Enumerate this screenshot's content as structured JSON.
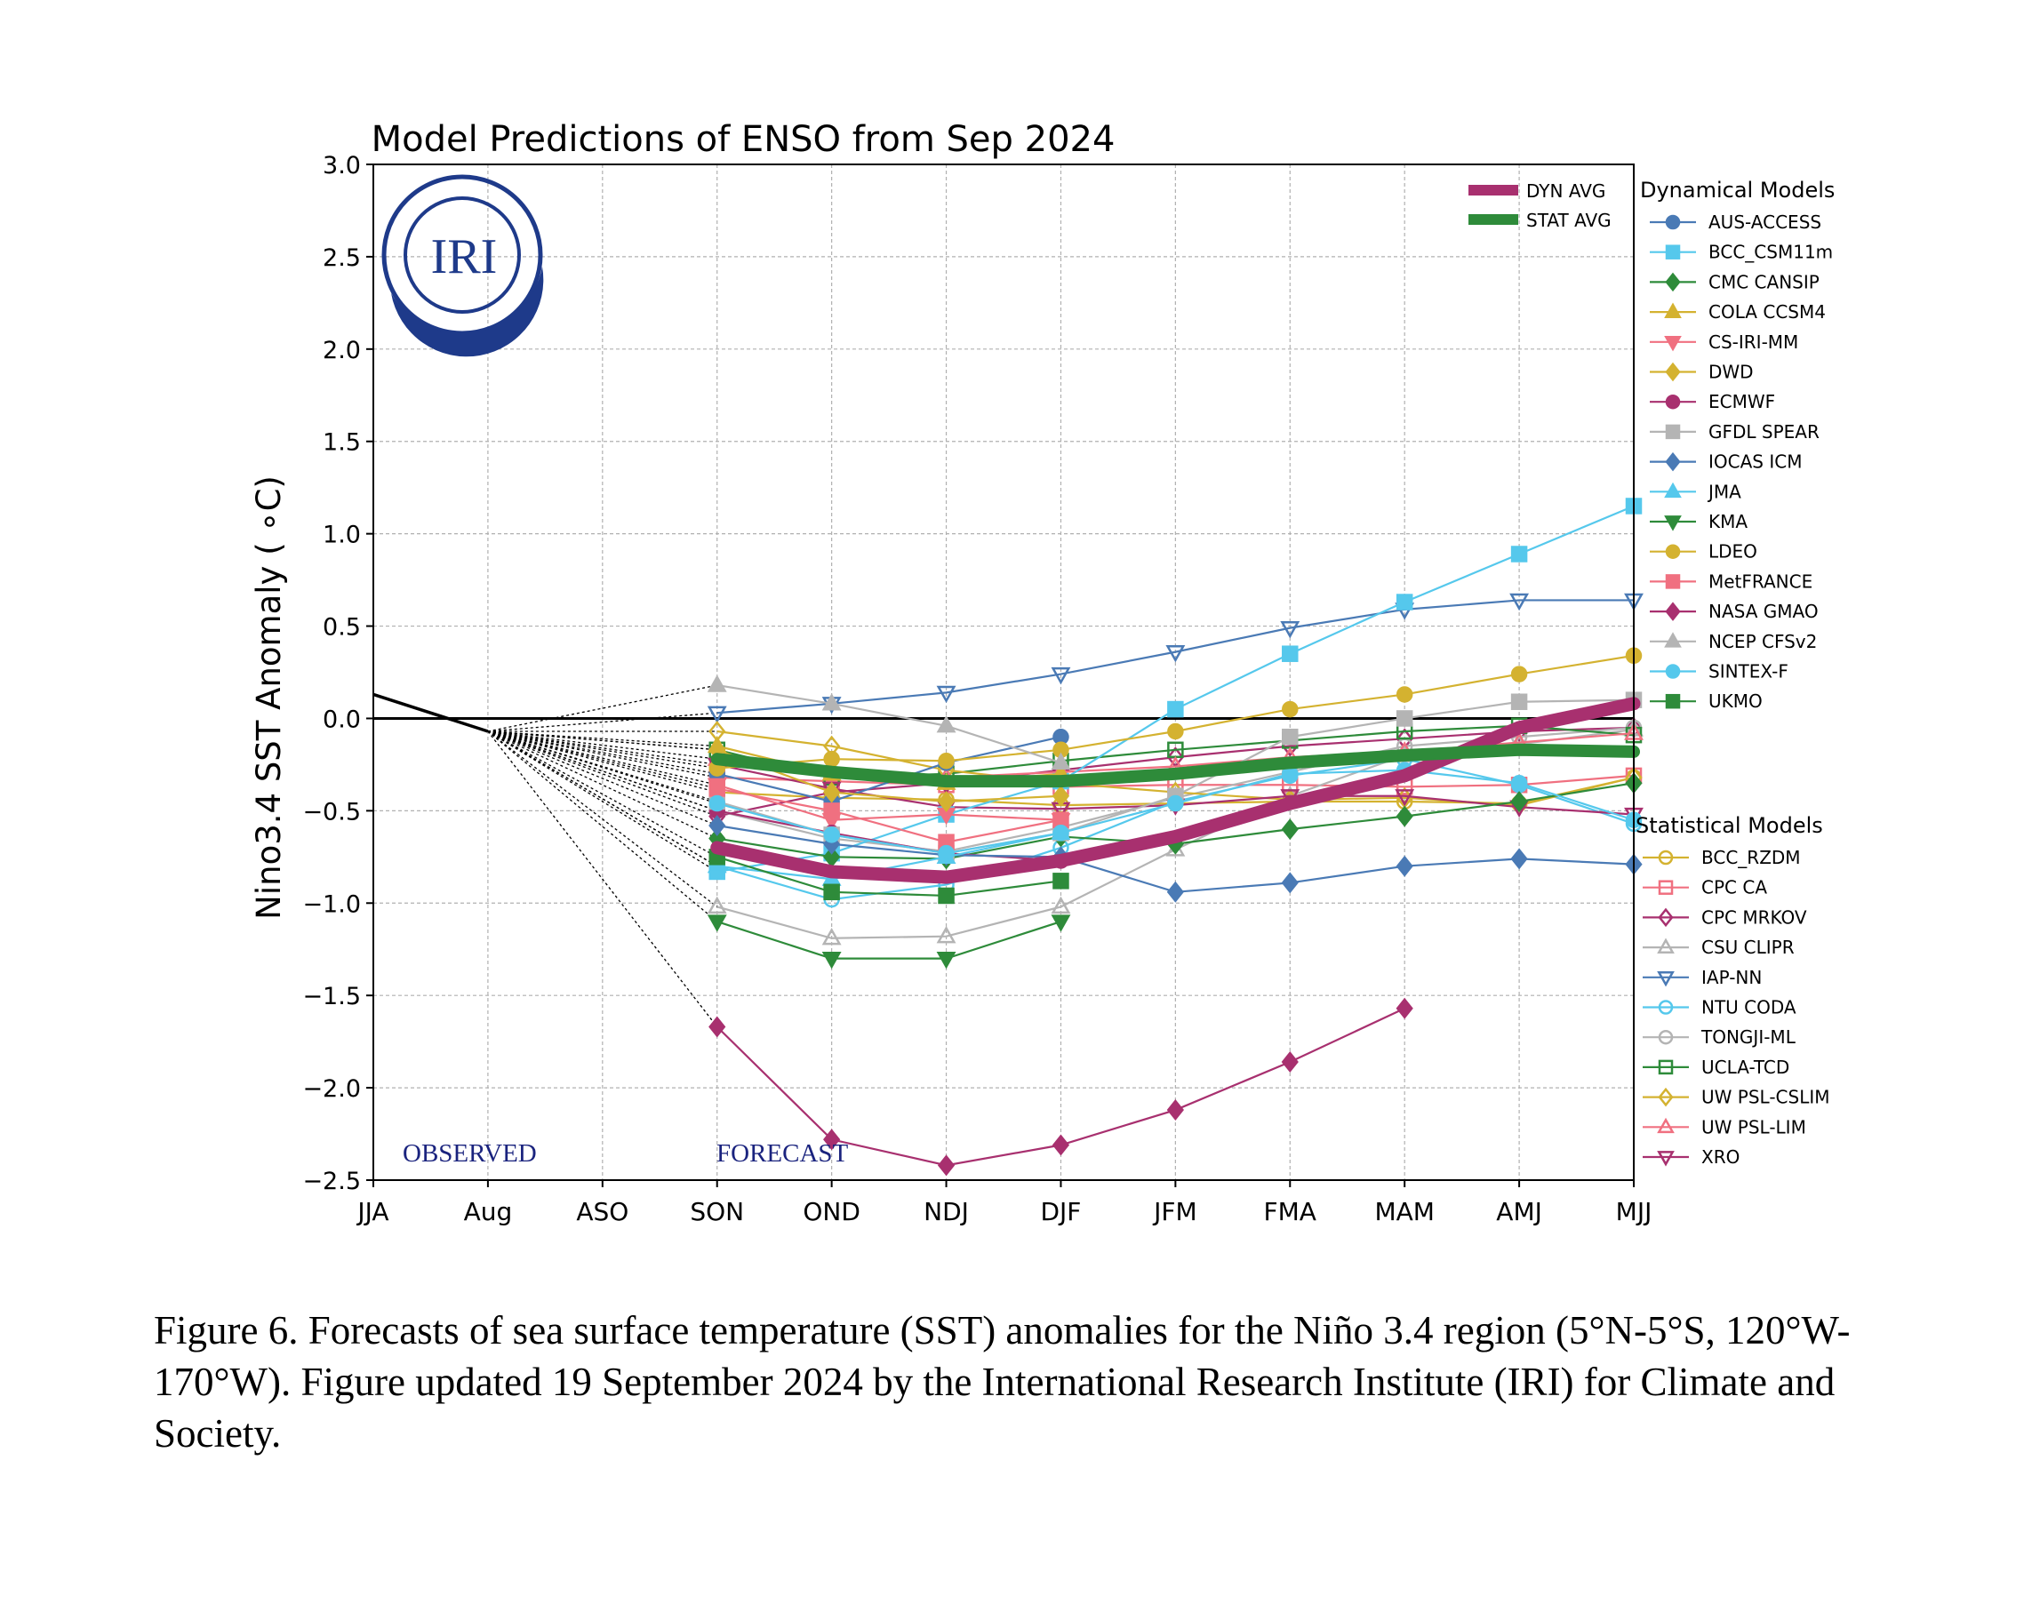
{
  "chart_data": {
    "type": "line",
    "title": "Model Predictions of ENSO from Sep 2024",
    "ylabel": "Nino3.4 SST Anomaly ( ∘C)",
    "xlabel": "",
    "categories": [
      "JJA",
      "Aug",
      "ASO",
      "SON",
      "OND",
      "NDJ",
      "DJF",
      "JFM",
      "FMA",
      "MAM",
      "AMJ",
      "MJJ"
    ],
    "ylim": [
      -2.5,
      3.0
    ],
    "yticks": [
      "3.0",
      "2.5",
      "2.0",
      "1.5",
      "1.0",
      "0.5",
      "0.0",
      "−0.5",
      "−1.0",
      "−1.5",
      "−2.0",
      "−2.5"
    ],
    "ytick_values": [
      3.0,
      2.5,
      2.0,
      1.5,
      1.0,
      0.5,
      0.0,
      -0.5,
      -1.0,
      -1.5,
      -2.0,
      -2.5
    ],
    "grid": true,
    "observed": {
      "label": "OBSERVED",
      "x_start": 0,
      "values": [
        0.13,
        -0.07
      ]
    },
    "forecast_label": "FORECAST",
    "forecast_start_index": 3,
    "logo_text": "IRI",
    "averages": [
      {
        "name": "DYN AVG",
        "color": "#a8306f",
        "values": [
          -0.7,
          -0.83,
          -0.86,
          -0.77,
          -0.64,
          -0.46,
          -0.31,
          -0.05,
          0.08
        ]
      },
      {
        "name": "STAT AVG",
        "color": "#2e8b3a",
        "values": [
          -0.22,
          -0.29,
          -0.34,
          -0.34,
          -0.3,
          -0.24,
          -0.2,
          -0.17,
          -0.18
        ]
      }
    ],
    "dynamical_title": "Dynamical Models",
    "statistical_title": "Statistical Models",
    "dynamical_models": [
      {
        "name": "AUS-ACCESS",
        "color": "#4a7ab5",
        "marker": "circle",
        "filled": true,
        "values": [
          -0.3,
          -0.45,
          -0.24,
          -0.1,
          null,
          null,
          null,
          null,
          null
        ]
      },
      {
        "name": "BCC_CSM11m",
        "color": "#55c8ec",
        "marker": "square",
        "filled": true,
        "values": [
          -0.83,
          -0.73,
          -0.52,
          -0.34,
          0.05,
          0.35,
          0.63,
          0.89,
          1.15
        ]
      },
      {
        "name": "CMC CANSIP",
        "color": "#2e8b3a",
        "marker": "diamond",
        "filled": true,
        "values": [
          -0.65,
          -0.75,
          -0.76,
          -0.64,
          -0.68,
          -0.6,
          -0.53,
          -0.45,
          -0.35
        ]
      },
      {
        "name": "COLA CCSM4",
        "color": "#d4b230",
        "marker": "triangle-up",
        "filled": true,
        "values": [
          -0.15,
          -0.3,
          -0.35,
          -0.3,
          null,
          null,
          null,
          null,
          null
        ]
      },
      {
        "name": "CS-IRI-MM",
        "color": "#f07080",
        "marker": "triangle-down",
        "filled": true,
        "values": [
          -0.36,
          -0.55,
          -0.52,
          -0.55,
          null,
          null,
          null,
          null,
          null
        ]
      },
      {
        "name": "DWD",
        "color": "#d4b230",
        "marker": "diamond",
        "filled": true,
        "values": [
          -0.17,
          -0.4,
          -0.45,
          -0.42,
          null,
          null,
          null,
          null,
          null
        ]
      },
      {
        "name": "ECMWF",
        "color": "#a8306f",
        "marker": "circle",
        "filled": true,
        "values": [
          -0.5,
          -0.62,
          -0.73,
          -0.77,
          null,
          null,
          null,
          null,
          null
        ]
      },
      {
        "name": "GFDL SPEAR",
        "color": "#b4b4b4",
        "marker": "square",
        "filled": true,
        "values": [
          -0.45,
          -0.63,
          -0.73,
          -0.62,
          -0.42,
          -0.1,
          0.0,
          0.09,
          0.1
        ]
      },
      {
        "name": "IOCAS ICM",
        "color": "#4a7ab5",
        "marker": "diamond",
        "filled": true,
        "values": [
          -0.58,
          -0.68,
          -0.74,
          -0.75,
          -0.94,
          -0.89,
          -0.8,
          -0.76,
          -0.79
        ]
      },
      {
        "name": "JMA",
        "color": "#55c8ec",
        "marker": "triangle-up",
        "filled": true,
        "values": [
          -0.8,
          -0.87,
          -0.75,
          -0.62,
          null,
          null,
          null,
          null,
          null
        ]
      },
      {
        "name": "KMA",
        "color": "#2e8b3a",
        "marker": "triangle-down",
        "filled": true,
        "values": [
          -1.1,
          -1.3,
          -1.3,
          -1.1,
          null,
          null,
          null,
          null,
          null
        ]
      },
      {
        "name": "LDEO",
        "color": "#d4b230",
        "marker": "circle",
        "filled": true,
        "values": [
          -0.27,
          -0.22,
          -0.23,
          -0.17,
          -0.07,
          0.05,
          0.13,
          0.24,
          0.34
        ]
      },
      {
        "name": "MetFRANCE",
        "color": "#f07080",
        "marker": "square",
        "filled": true,
        "values": [
          -0.38,
          -0.5,
          -0.67,
          -0.55,
          null,
          null,
          null,
          null,
          null
        ]
      },
      {
        "name": "NASA GMAO",
        "color": "#a8306f",
        "marker": "diamond",
        "filled": true,
        "values": [
          -1.67,
          -2.28,
          -2.42,
          -2.31,
          -2.12,
          -1.86,
          -1.57,
          null,
          null
        ]
      },
      {
        "name": "NCEP CFSv2",
        "color": "#b4b4b4",
        "marker": "triangle-up",
        "filled": true,
        "values": [
          0.18,
          0.08,
          -0.04,
          -0.24,
          null,
          null,
          null,
          null,
          null
        ]
      },
      {
        "name": "SINTEX-F",
        "color": "#55c8ec",
        "marker": "circle",
        "filled": true,
        "values": [
          -0.46,
          -0.63,
          -0.73,
          -0.62,
          -0.46,
          -0.3,
          -0.28,
          -0.35,
          -0.55
        ]
      },
      {
        "name": "UKMO",
        "color": "#2e8b3a",
        "marker": "square",
        "filled": true,
        "values": [
          -0.75,
          -0.94,
          -0.96,
          -0.88,
          null,
          null,
          null,
          null,
          null
        ]
      }
    ],
    "statistical_models": [
      {
        "name": "BCC_RZDM",
        "color": "#d4b230",
        "marker": "circle",
        "filled": false,
        "values": [
          -0.4,
          -0.43,
          -0.44,
          -0.47,
          -0.46,
          -0.45,
          -0.45,
          -0.46,
          -0.32
        ]
      },
      {
        "name": "CPC CA",
        "color": "#f07080",
        "marker": "square",
        "filled": false,
        "values": [
          -0.32,
          -0.34,
          -0.36,
          -0.37,
          -0.36,
          -0.36,
          -0.37,
          -0.36,
          -0.31
        ]
      },
      {
        "name": "CPC MRKOV",
        "color": "#a8306f",
        "marker": "diamond",
        "filled": false,
        "values": [
          -0.53,
          -0.4,
          -0.35,
          -0.28,
          -0.21,
          -0.15,
          -0.11,
          -0.07,
          -0.05
        ]
      },
      {
        "name": "CSU CLIPR",
        "color": "#b4b4b4",
        "marker": "triangle-up",
        "filled": false,
        "values": [
          -1.02,
          -1.19,
          -1.18,
          -1.02,
          -0.71,
          -0.42,
          -0.2,
          -0.14,
          -0.06
        ]
      },
      {
        "name": "IAP-NN",
        "color": "#4a7ab5",
        "marker": "triangle-down",
        "filled": false,
        "values": [
          0.03,
          0.08,
          0.14,
          0.24,
          0.36,
          0.49,
          0.59,
          0.64,
          0.64
        ]
      },
      {
        "name": "NTU CODA",
        "color": "#55c8ec",
        "marker": "circle",
        "filled": false,
        "values": [
          -0.8,
          -0.98,
          -0.9,
          -0.7,
          -0.45,
          -0.31,
          -0.22,
          -0.36,
          -0.57
        ]
      },
      {
        "name": "TONGJI-ML",
        "color": "#b4b4b4",
        "marker": "circle",
        "filled": false,
        "values": [
          -0.5,
          -0.65,
          -0.72,
          -0.59,
          -0.43,
          -0.29,
          -0.15,
          -0.1,
          -0.05
        ]
      },
      {
        "name": "UCLA-TCD",
        "color": "#2e8b3a",
        "marker": "square",
        "filled": false,
        "values": [
          -0.17,
          -0.32,
          -0.3,
          -0.23,
          -0.17,
          -0.12,
          -0.07,
          -0.04,
          -0.09
        ]
      },
      {
        "name": "UW PSL-CSLIM",
        "color": "#d4b230",
        "marker": "diamond",
        "filled": false,
        "values": [
          -0.07,
          -0.15,
          -0.28,
          -0.35,
          -0.4,
          -0.44,
          -0.43,
          -0.47,
          -0.32
        ]
      },
      {
        "name": "UW PSL-LIM",
        "color": "#f07080",
        "marker": "triangle-up",
        "filled": false,
        "values": [
          -0.22,
          -0.3,
          -0.32,
          -0.29,
          -0.26,
          -0.21,
          -0.18,
          -0.13,
          -0.08
        ]
      },
      {
        "name": "XRO",
        "color": "#a8306f",
        "marker": "triangle-down",
        "filled": false,
        "values": [
          -0.25,
          -0.38,
          -0.48,
          -0.49,
          -0.47,
          -0.42,
          -0.42,
          -0.48,
          -0.52
        ]
      }
    ]
  },
  "caption": "Figure 6. Forecasts of sea surface temperature (SST) anomalies for the Niño 3.4 region (5°N-5°S, 120°W-170°W). Figure updated 19 September 2024 by the International Research Institute (IRI) for Climate and Society."
}
